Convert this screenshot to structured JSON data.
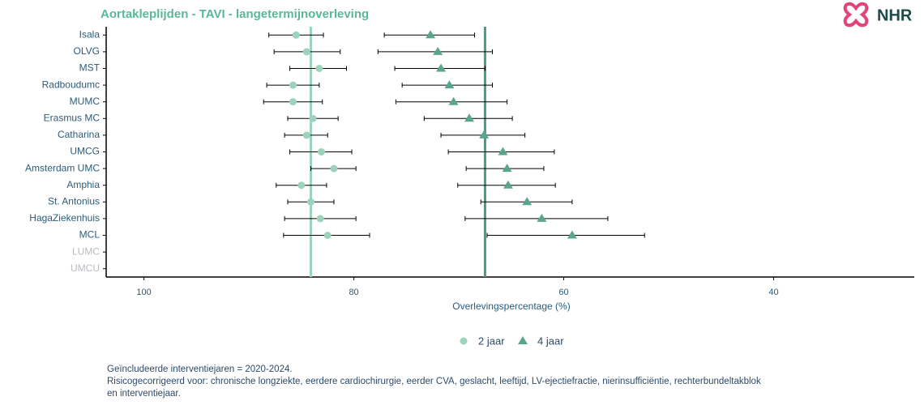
{
  "chart_data": {
    "type": "dotplot",
    "title": "Aortakleplijden - TAVI - langetermijnoverleving",
    "logo_text": "NHR",
    "x_label": "Overlevingspercentage (%)",
    "categories": [
      "Isala",
      "OLVG",
      "MST",
      "Radboudumc",
      "MUMC",
      "Erasmus MC",
      "Catharina",
      "UMCG",
      "Amsterdam UMC",
      "Amphia",
      "St. Antonius",
      "HagaZiekenhuis",
      "MCL",
      "LUMC",
      "UMCU"
    ],
    "series": [
      {
        "name": "2 jaar",
        "color": "#9dd3bc",
        "marker": "circle",
        "values": [
          85.5,
          84.5,
          83.3,
          85.8,
          85.8,
          83.9,
          84.5,
          83.1,
          81.9,
          85.0,
          84.1,
          83.2,
          82.5,
          null,
          null
        ],
        "lower": [
          82.9,
          81.3,
          80.7,
          83.3,
          83.0,
          81.5,
          82.5,
          80.2,
          79.8,
          82.6,
          81.9,
          79.8,
          78.5,
          null,
          null
        ],
        "upper": [
          88.1,
          87.6,
          86.1,
          88.3,
          88.6,
          86.3,
          86.6,
          86.1,
          84.1,
          87.4,
          86.3,
          86.6,
          86.7,
          null,
          null
        ]
      },
      {
        "name": "4 jaar",
        "color": "#5aa68a",
        "marker": "triangle",
        "values": [
          72.7,
          72.0,
          71.7,
          70.9,
          70.5,
          69.0,
          67.6,
          65.8,
          65.4,
          65.3,
          63.5,
          62.1,
          59.2,
          null,
          null
        ],
        "lower": [
          68.5,
          66.8,
          67.5,
          66.8,
          65.4,
          64.9,
          63.7,
          60.9,
          61.9,
          60.8,
          59.2,
          55.8,
          52.3,
          null,
          null
        ],
        "upper": [
          77.1,
          77.7,
          76.1,
          75.4,
          76.0,
          73.3,
          71.7,
          71.0,
          69.3,
          70.1,
          67.9,
          69.4,
          67.3,
          null,
          null
        ]
      }
    ],
    "reference_lines": [
      {
        "value": 84.1,
        "color": "#9dd3bc"
      },
      {
        "value": 67.5,
        "color": "#4e9a80"
      }
    ],
    "xlim": [
      103.6,
      26.6
    ],
    "xticks": [
      100,
      80,
      60,
      40
    ],
    "legend": "bottom",
    "notes": [
      "Geïncludeerde interventiejaren = 2020-2024.",
      "Risicogecorrigeerd voor: chronische longziekte, eerdere cardiochirurgie, eerder CVA, geslacht, leeftijd, LV-ejectiefractie, nierinsufficiëntie, rechterbundeltakblok",
      "en interventiejaar."
    ]
  }
}
